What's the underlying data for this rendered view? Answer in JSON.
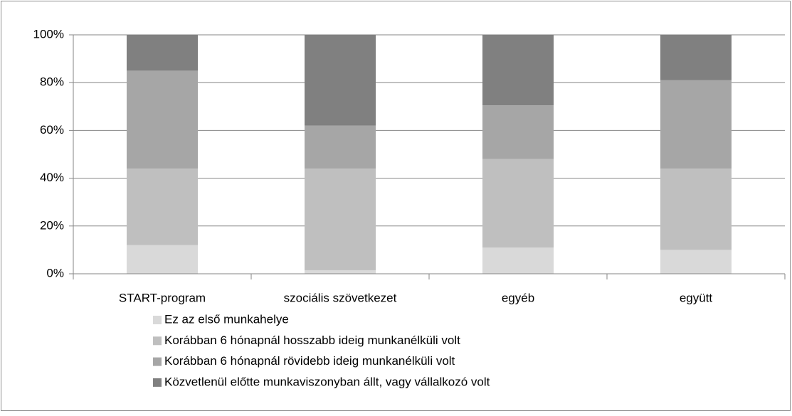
{
  "chart_data": {
    "type": "stacked_bar",
    "categories": [
      "START-program",
      "szociális szövetkezet",
      "egyéb",
      "együtt"
    ],
    "series": [
      {
        "name": "Ez az első munkahelye",
        "color": "#d9d9d9",
        "values": [
          12,
          1.5,
          11,
          10
        ]
      },
      {
        "name": "Korábban 6 hónapnál hosszabb ideig munkanélküli volt",
        "color": "#bfbfbf",
        "values": [
          32,
          42.5,
          37,
          34
        ]
      },
      {
        "name": "Korábban 6 hónapnál rövidebb ideig munkanélküli volt",
        "color": "#a6a6a6",
        "values": [
          41,
          18,
          22.5,
          37
        ]
      },
      {
        "name": "Közvetlenül előtte munkaviszonyban állt, vagy vállalkozó volt",
        "color": "#808080",
        "values": [
          15,
          38,
          29.5,
          19
        ]
      }
    ],
    "ylim": [
      0,
      100
    ],
    "yticks": [
      {
        "value": 0,
        "label": "0%"
      },
      {
        "value": 20,
        "label": "20%"
      },
      {
        "value": 40,
        "label": "40%"
      },
      {
        "value": 60,
        "label": "60%"
      },
      {
        "value": 80,
        "label": "80%"
      },
      {
        "value": 100,
        "label": "100%"
      }
    ],
    "grid": true
  }
}
